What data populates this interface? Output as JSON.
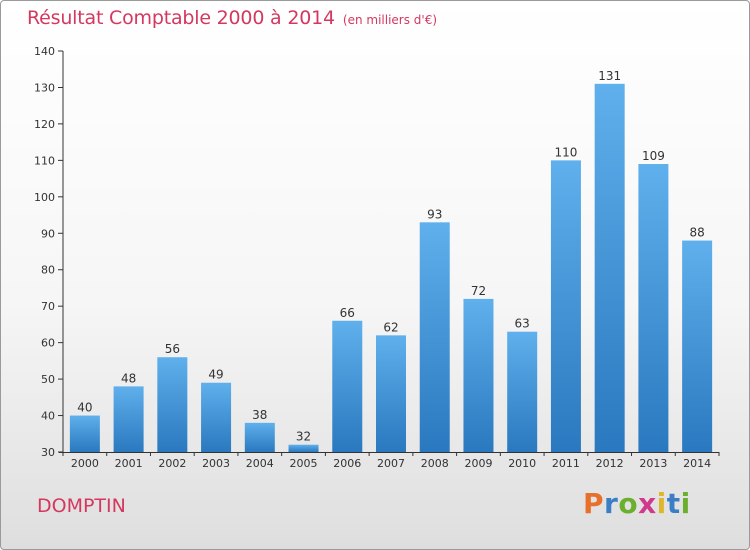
{
  "header": {
    "title": "Résultat Comptable 2000 à 2014",
    "subtitle": "(en milliers d'€)"
  },
  "footer": {
    "town": "DOMPTIN",
    "brand": "Proxiti"
  },
  "chart_data": {
    "type": "bar",
    "title": "Résultat Comptable 2000 à 2014",
    "subtitle": "(en milliers d'€)",
    "categories": [
      "2000",
      "2001",
      "2002",
      "2003",
      "2004",
      "2005",
      "2006",
      "2007",
      "2008",
      "2009",
      "2010",
      "2011",
      "2012",
      "2013",
      "2014"
    ],
    "values": [
      40,
      48,
      56,
      49,
      38,
      32,
      66,
      62,
      93,
      72,
      63,
      110,
      131,
      109,
      88
    ],
    "ylim": [
      30,
      140
    ],
    "yticks": [
      30,
      40,
      50,
      60,
      70,
      80,
      90,
      100,
      110,
      120,
      130,
      140
    ],
    "grid": false,
    "data_labels": true,
    "bar_color": "#3f93d8",
    "title_color": "#d4385f"
  }
}
